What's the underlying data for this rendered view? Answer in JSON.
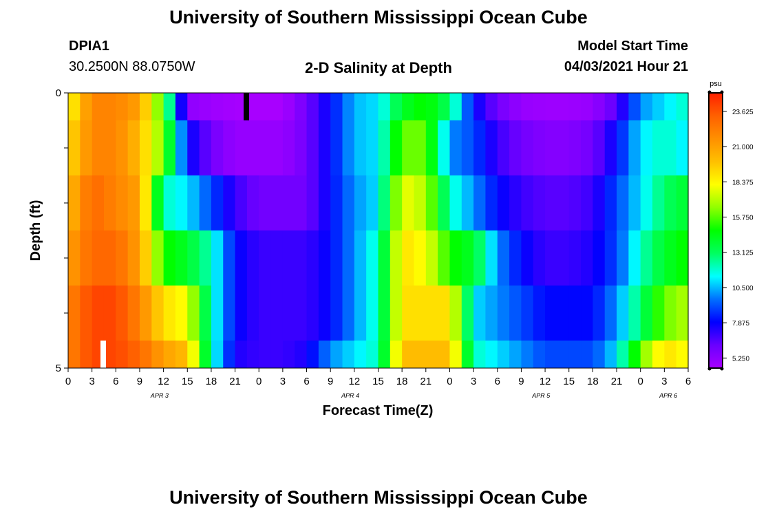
{
  "header": {
    "title": "University of Southern Mississippi Ocean Cube",
    "station_id": "DPIA1",
    "location": "30.2500N  88.0750W",
    "plot_title": "2-D Salinity at Depth",
    "model_start_label": "Model Start Time",
    "model_start_value": "04/03/2021 Hour 21"
  },
  "footer": {
    "title": "University of Southern Mississippi Ocean Cube"
  },
  "colors": {
    "colormap": [
      "#a800ff",
      "#6a00ff",
      "#0000ff",
      "#0070ff",
      "#00ffff",
      "#00ff60",
      "#00ff00",
      "#90ff00",
      "#ffff00",
      "#ffc000",
      "#ff9000",
      "#ff6000",
      "#ff2000"
    ]
  },
  "chart_data": {
    "type": "heatmap",
    "title": "2-D Salinity at Depth",
    "xlabel": "Forecast Time(Z)",
    "ylabel": "Depth (ft)",
    "xlim": [
      0,
      78
    ],
    "ylim": [
      0,
      5
    ],
    "x_tick_labels": [
      "0",
      "3",
      "6",
      "9",
      "12",
      "15",
      "18",
      "21",
      "0",
      "3",
      "6",
      "9",
      "12",
      "15",
      "18",
      "21",
      "0",
      "3",
      "6",
      "9",
      "12",
      "15",
      "18",
      "21",
      "0",
      "3",
      "6"
    ],
    "y_tick_labels": [
      "0",
      "5"
    ],
    "date_labels": [
      {
        "label": "APR 3",
        "hour": 11.5
      },
      {
        "label": "APR 4",
        "hour": 35.5
      },
      {
        "label": "APR 5",
        "hour": 59.5
      },
      {
        "label": "APR 6",
        "hour": 75.5
      }
    ],
    "colorbar": {
      "unit": "psu",
      "min": 4.5,
      "max": 25,
      "tick_labels": [
        "23.625",
        "21.000",
        "18.375",
        "15.750",
        "13.125",
        "10.500",
        "7.875",
        "5.250"
      ]
    },
    "x_hours": [
      0,
      3,
      6,
      9,
      12,
      15,
      18,
      21,
      24,
      27,
      30,
      33,
      36,
      39,
      42,
      45,
      48,
      51,
      54,
      57,
      60,
      63,
      66,
      69,
      72,
      75,
      78
    ],
    "rows": [
      {
        "depth_range": [
          0,
          0.5
        ],
        "values": [
          18,
          22,
          22,
          21,
          15,
          5.2,
          4.8,
          4.6,
          4.4,
          4.5,
          6,
          8,
          10.5,
          11,
          14,
          15,
          13,
          8,
          6,
          5,
          4.8,
          4.8,
          5,
          6.5,
          10,
          11,
          12
        ]
      },
      {
        "depth_range": [
          0.5,
          1.5
        ],
        "values": [
          19,
          22,
          22,
          20,
          16,
          8,
          6,
          5,
          5,
          5,
          6,
          8,
          10.5,
          11,
          16,
          16,
          10,
          9,
          7,
          6,
          5.5,
          5.5,
          6,
          8,
          11,
          12,
          11
        ]
      },
      {
        "depth_range": [
          1.5,
          2.5
        ],
        "values": [
          20,
          23,
          22,
          21,
          12,
          11,
          9,
          7,
          6,
          6,
          6,
          8,
          10,
          11,
          18,
          17,
          12,
          10,
          8,
          7,
          6.5,
          6.5,
          7,
          9,
          11,
          13,
          14
        ]
      },
      {
        "depth_range": [
          2.5,
          3.5
        ],
        "values": [
          21,
          23,
          23,
          21,
          15,
          14,
          12,
          8,
          7,
          7,
          7,
          8,
          10,
          12,
          19,
          18,
          15,
          14,
          10,
          8,
          7,
          7,
          7.5,
          9,
          12,
          14,
          15
        ]
      },
      {
        "depth_range": [
          3.5,
          4.5
        ],
        "values": [
          22,
          24,
          24,
          22,
          19,
          18,
          12,
          8,
          7,
          7,
          7,
          8,
          10,
          12,
          19,
          19,
          19,
          11,
          10,
          9,
          8,
          8,
          8,
          10,
          13,
          16,
          17
        ]
      },
      {
        "depth_range": [
          4.5,
          5.0
        ],
        "values": [
          22,
          24,
          24,
          23,
          21,
          20,
          12,
          7.5,
          7,
          7,
          7.5,
          10,
          11,
          12,
          20,
          20,
          20,
          12,
          11,
          10,
          9,
          9,
          9,
          11,
          16,
          19,
          18
        ]
      }
    ]
  }
}
